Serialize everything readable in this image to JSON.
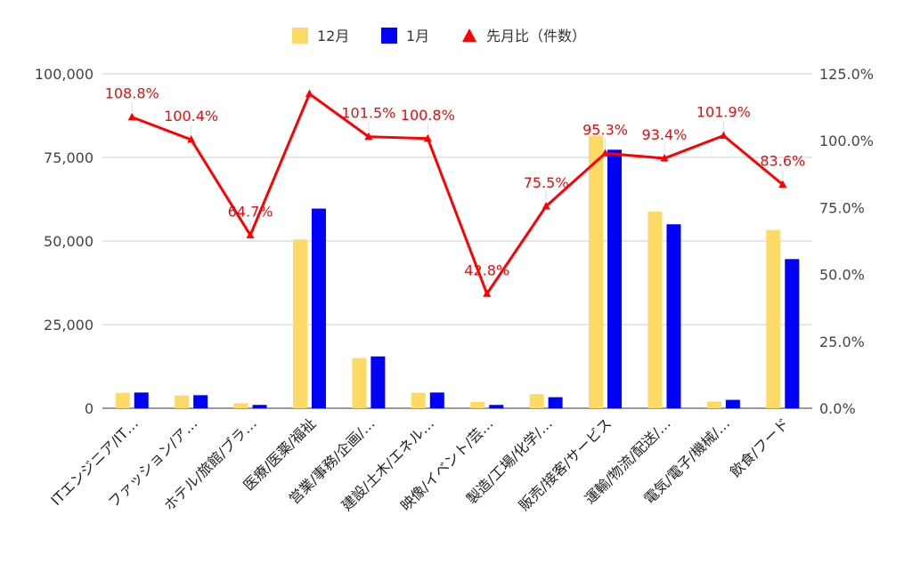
{
  "chart_data": {
    "type": "bar",
    "title": "",
    "categories": [
      "ITエンジニア/IT…",
      "ファッション/ア…",
      "ホテル/旅館/ブラ…",
      "医療/医薬/福祉",
      "営業/事務/企画/…",
      "建設/土木/エネル…",
      "映像/イベント/芸…",
      "製造/工場/化学/…",
      "販売/接客/サービス",
      "運輸/物流/配送/…",
      "電気/電子/機械/…",
      "飲食/フード"
    ],
    "series": [
      {
        "name": "12月",
        "type": "bar",
        "axis": "left",
        "color": "#FFD966",
        "values": [
          4600,
          3800,
          1500,
          50500,
          15000,
          4600,
          1900,
          4200,
          81500,
          58800,
          2000,
          53300
        ]
      },
      {
        "name": "1月",
        "type": "bar",
        "axis": "left",
        "color": "#0000FF",
        "values": [
          4700,
          3900,
          1000,
          59700,
          15500,
          4700,
          1000,
          3300,
          77300,
          55000,
          2500,
          44600
        ]
      },
      {
        "name": "先月比（件数）",
        "type": "line",
        "axis": "right",
        "color": "#FF0000",
        "marker": "triangle",
        "values": [
          108.8,
          100.4,
          64.7,
          117.5,
          101.5,
          100.8,
          42.8,
          75.5,
          95.3,
          93.4,
          101.9,
          83.6
        ],
        "labels": [
          "108.8%",
          "100.4%",
          "64.7%",
          "",
          "101.5%",
          "100.8%",
          "42.8%",
          "75.5%",
          "95.3%",
          "93.4%",
          "101.9%",
          "83.6%"
        ]
      }
    ],
    "y_left": {
      "min": 0,
      "max": 100000,
      "ticks": [
        "0",
        "25,000",
        "50,000",
        "75,000",
        "100,000"
      ]
    },
    "y_right": {
      "min": 0,
      "max": 125,
      "ticks": [
        "0.0%",
        "25.0%",
        "50.0%",
        "75.0%",
        "100.0%",
        "125.0%"
      ]
    },
    "grid": true,
    "legend": "top"
  }
}
